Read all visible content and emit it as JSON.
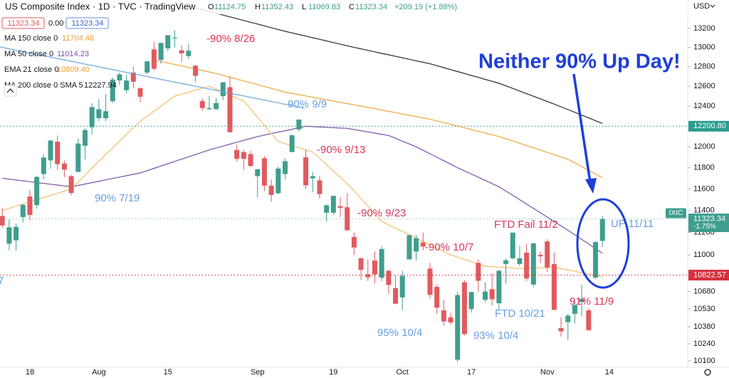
{
  "chart_data": {
    "type": "candlestick",
    "title": "US Composite Index · 1D · TVC · TradingView",
    "header": {
      "labels": [
        "O",
        "H",
        "L",
        "C"
      ],
      "change": "+209.19 (+1.88%)",
      "boxes": [
        "11323.34",
        "0.00",
        "11323.34"
      ]
    },
    "currency": "USD",
    "categories": [
      null,
      null,
      null,
      null,
      "18",
      null,
      null,
      null,
      null,
      null,
      null,
      null,
      null,
      null,
      "Aug",
      null,
      null,
      null,
      null,
      null,
      null,
      null,
      null,
      null,
      "15",
      null,
      null,
      null,
      null,
      null,
      null,
      null,
      null,
      null,
      null,
      null,
      null,
      "Sep",
      null,
      null,
      null,
      null,
      null,
      null,
      null,
      null,
      null,
      null,
      "19",
      null,
      null,
      null,
      null,
      null,
      null,
      null,
      null,
      null,
      "Oct",
      null,
      null,
      null,
      null,
      null,
      null,
      null,
      null,
      null,
      "17",
      null,
      null,
      null,
      null,
      null,
      null,
      null,
      null,
      null,
      null,
      "Nov",
      null,
      null,
      null,
      null,
      null,
      null,
      null,
      null,
      "14"
    ],
    "open": [
      11350,
      11100,
      11130,
      11340,
      11530,
      11450,
      11740,
      11870,
      12050,
      11840,
      11720,
      11760,
      12010,
      12190,
      12280,
      12280,
      12450,
      12660,
      12560,
      12740,
      12580,
      12740,
      12980,
      12870,
      12990,
      13100,
      12970,
      12910,
      12810,
      12450,
      12370,
      12370,
      12500,
      12590,
      11970,
      11950,
      11930,
      11720,
      11890,
      11630,
      11560,
      11740,
      11950,
      12170,
      11900,
      11700,
      11680,
      11380,
      11380,
      11440,
      11430,
      11160,
      10970,
      10830,
      10950,
      10800,
      10860,
      10710,
      10630,
      10960,
      11030,
      11110,
      10880,
      10720,
      10520,
      10460,
      10110,
      10760,
      10530,
      10930,
      10610,
      10700,
      10580,
      10920,
      10970,
      10920,
      11020,
      10740,
      11000,
      11120,
      10920,
      10370,
      10420,
      10490,
      10590,
      10520,
      10800,
      11124.75,
      null
    ],
    "high": [
      11420,
      11320,
      11280,
      11460,
      11590,
      11720,
      11930,
      12070,
      12110,
      11870,
      11730,
      12080,
      12180,
      12430,
      12470,
      12520,
      12690,
      12740,
      12720,
      12800,
      12590,
      12860,
      13060,
      13050,
      13130,
      13180,
      13020,
      13040,
      12820,
      12480,
      12500,
      12480,
      12640,
      12700,
      12020,
      11970,
      11960,
      11790,
      11910,
      11690,
      11810,
      11890,
      12120,
      12270,
      11970,
      11760,
      11720,
      11460,
      11540,
      11520,
      11560,
      11200,
      10980,
      10960,
      11030,
      11080,
      10870,
      10820,
      10860,
      11180,
      11180,
      11200,
      10930,
      10740,
      10610,
      10500,
      10680,
      10780,
      10680,
      10960,
      10760,
      10840,
      10870,
      10970,
      11200,
      11080,
      11100,
      11110,
      11030,
      11140,
      11020,
      10460,
      10490,
      10600,
      10740,
      10540,
      11120,
      11352.43,
      null
    ],
    "low": [
      11240,
      11040,
      11040,
      11290,
      11310,
      11420,
      11690,
      11790,
      11780,
      11710,
      11540,
      11760,
      11880,
      12120,
      12250,
      12250,
      12430,
      12610,
      12530,
      12580,
      12440,
      12720,
      12760,
      12830,
      12960,
      13000,
      12850,
      12880,
      12640,
      12350,
      12360,
      12360,
      12460,
      12140,
      11860,
      11780,
      11810,
      11520,
      11580,
      11480,
      11550,
      11690,
      11950,
      12150,
      11600,
      11570,
      11510,
      11300,
      11360,
      11340,
      11220,
      11000,
      10780,
      10770,
      10750,
      10770,
      10660,
      10570,
      10520,
      10960,
      10950,
      11040,
      10620,
      10490,
      10390,
      10400,
      10090,
      10310,
      10500,
      10680,
      10590,
      10560,
      10520,
      10750,
      10960,
      10900,
      10770,
      10720,
      10930,
      10850,
      10520,
      10300,
      10270,
      10410,
      10470,
      10350,
      10790,
      11069.83,
      null
    ],
    "close": [
      11264,
      11248,
      11251,
      11452,
      11360,
      11713,
      11897,
      12060,
      11834,
      11782,
      11562,
      12032,
      12163,
      12391,
      12369,
      12349,
      12668,
      12721,
      12658,
      12645,
      12494,
      12855,
      12779,
      13047,
      13129,
      13103,
      12938,
      12966,
      12706,
      12381,
      12381,
      12431,
      12640,
      12142,
      11884,
      11884,
      11816,
      11785,
      11631,
      11544,
      11792,
      11862,
      12112,
      12266,
      11634,
      11720,
      11552,
      11448,
      11535,
      11425,
      11220,
      11066,
      10868,
      10803,
      10829,
      11052,
      10737,
      10576,
      10816,
      11176,
      11148,
      11074,
      10652,
      10542,
      10426,
      10418,
      10650,
      10321,
      10676,
      10773,
      10680,
      10614,
      10860,
      10952,
      11199,
      10970,
      10793,
      11102,
      10988,
      10890,
      10524,
      10343,
      10475,
      10565,
      10617,
      10353,
      11114,
      11323.34,
      null
    ],
    "colors": {
      "up": "#3f9e8e",
      "down": "#e15a5f"
    },
    "series": [
      {
        "name": "MA 150 close 0",
        "value_label": "11704.48",
        "color": "#f2a53c",
        "label_color": "#f0a030",
        "values": [
          null,
          null,
          null,
          null,
          null,
          null,
          null,
          null,
          null,
          null,
          null,
          null,
          null,
          null,
          null,
          null,
          null,
          null,
          null,
          null,
          null,
          null,
          12870,
          12854,
          12839,
          12823,
          12808,
          12792,
          12777,
          12761,
          12746,
          12730,
          12711,
          12692,
          12673,
          12654,
          12635,
          12616,
          12597,
          12578,
          12559,
          12540,
          12527,
          12515,
          12502,
          12489,
          12476,
          12464,
          12451,
          12438,
          12425,
          12413,
          12400,
          12387,
          12374,
          12361,
          12348,
          12335,
          12322,
          12309,
          12296,
          12283,
          12270,
          12253,
          12236,
          12219,
          12202,
          12185,
          12168,
          12151,
          12134,
          12117,
          12100,
          12078,
          12056,
          12034,
          12012,
          11990,
          11968,
          11946,
          11924,
          11902,
          11880,
          11845,
          11810,
          11775,
          11740,
          11704.48,
          null
        ]
      },
      {
        "name": "MA 50 close 0",
        "value_label": "11014.23",
        "color": "#7b52ab",
        "label_color": "#7b52ab",
        "values": [
          11700,
          11692,
          11684,
          11676,
          11668,
          11660,
          11652,
          11644,
          11636,
          11628,
          11620,
          11633,
          11646,
          11659,
          11672,
          11685,
          11698,
          11711,
          11724,
          11737,
          11750,
          11772,
          11794,
          11816,
          11838,
          11860,
          11882,
          11904,
          11926,
          11948,
          11970,
          11989,
          12007,
          12026,
          12044,
          12063,
          12081,
          12100,
          12114,
          12129,
          12143,
          12157,
          12171,
          12186,
          12200,
          12197,
          12193,
          12190,
          12187,
          12183,
          12180,
          12168,
          12157,
          12145,
          12133,
          12122,
          12110,
          12083,
          12055,
          12028,
          12000,
          11967,
          11933,
          11900,
          11867,
          11833,
          11800,
          11770,
          11740,
          11710,
          11680,
          11650,
          11620,
          11580,
          11540,
          11500,
          11460,
          11420,
          11380,
          11340,
          11300,
          11260,
          11220,
          11179,
          11138,
          11097,
          11056,
          11014.23,
          null
        ]
      },
      {
        "name": "EMA 21 close 0",
        "value_label": "10809.40",
        "color": "#f7be6a",
        "label_color": "#f0a030",
        "values": [
          11400,
          11420,
          11440,
          11460,
          11480,
          11500,
          11520,
          11540,
          11560,
          11580,
          11600,
          11665,
          11730,
          11795,
          11860,
          11925,
          11990,
          12055,
          12120,
          12185,
          12250,
          12300,
          12350,
          12400,
          12450,
          12500,
          12520,
          12540,
          12560,
          12580,
          12600,
          12570,
          12540,
          12510,
          12480,
          12450,
          12370,
          12290,
          12210,
          12130,
          12050,
          12030,
          12010,
          11990,
          11970,
          11950,
          11890,
          11830,
          11770,
          11710,
          11650,
          11580,
          11510,
          11440,
          11370,
          11300,
          11270,
          11240,
          11210,
          11180,
          11150,
          11120,
          11090,
          11060,
          11030,
          11000,
          10980,
          10960,
          10940,
          10920,
          10900,
          10896,
          10892,
          10888,
          10884,
          10880,
          10882,
          10884,
          10886,
          10888,
          10890,
          10878,
          10867,
          10855,
          10844,
          10832,
          10821,
          10809.4,
          null
        ]
      },
      {
        "name": "MA 200 close 0 SMA 5",
        "value_label": "12227.94",
        "color": "#2a2a2a",
        "label_color": "#131722",
        "values": [
          null,
          null,
          null,
          null,
          null,
          null,
          null,
          null,
          null,
          null,
          null,
          null,
          null,
          null,
          null,
          null,
          null,
          null,
          null,
          null,
          null,
          null,
          null,
          null,
          null,
          null,
          null,
          null,
          13420,
          13401,
          13382,
          13362,
          13343,
          13324,
          13305,
          13285,
          13266,
          13247,
          13228,
          13208,
          13189,
          13170,
          13153,
          13136,
          13119,
          13102,
          13085,
          13068,
          13051,
          13034,
          13017,
          13000,
          12985,
          12969,
          12954,
          12938,
          12923,
          12907,
          12892,
          12876,
          12861,
          12845,
          12830,
          12810,
          12790,
          12770,
          12750,
          12730,
          12710,
          12690,
          12670,
          12650,
          12630,
          12604,
          12578,
          12551,
          12525,
          12499,
          12473,
          12446,
          12420,
          12393,
          12365,
          12338,
          12310,
          12283,
          12255,
          12227.94,
          null
        ]
      }
    ],
    "ylim": [
      10048,
      13506
    ],
    "log_scale": true,
    "grid": false,
    "yticks": [
      13200,
      13000,
      12800,
      12600,
      12400,
      12000,
      11800,
      11600,
      11400,
      11200,
      11000,
      10680,
      10530,
      10380,
      10240,
      10100
    ],
    "price_lines": [
      {
        "value": 12200.8,
        "label": "12200.80",
        "color": "#2a9d8f"
      },
      {
        "value": 11323.34,
        "color": "#3f9e8e",
        "tag": "IXIC",
        "note": "-1.75%"
      },
      {
        "value": 10822.57,
        "color": "#d6313e"
      }
    ],
    "annotations": [
      "-90% 8/26",
      "90% 9/9",
      "-90% 9/13",
      "90% 7/19",
      "-90% 9/23",
      "FTD Fail 11/2",
      "-90% 10/7",
      "UP 11/11",
      "91% 11/9",
      "FTD 10/21",
      "95% 10/4",
      "93% 10/4",
      "7",
      "Neither 90% Up Day!"
    ]
  }
}
